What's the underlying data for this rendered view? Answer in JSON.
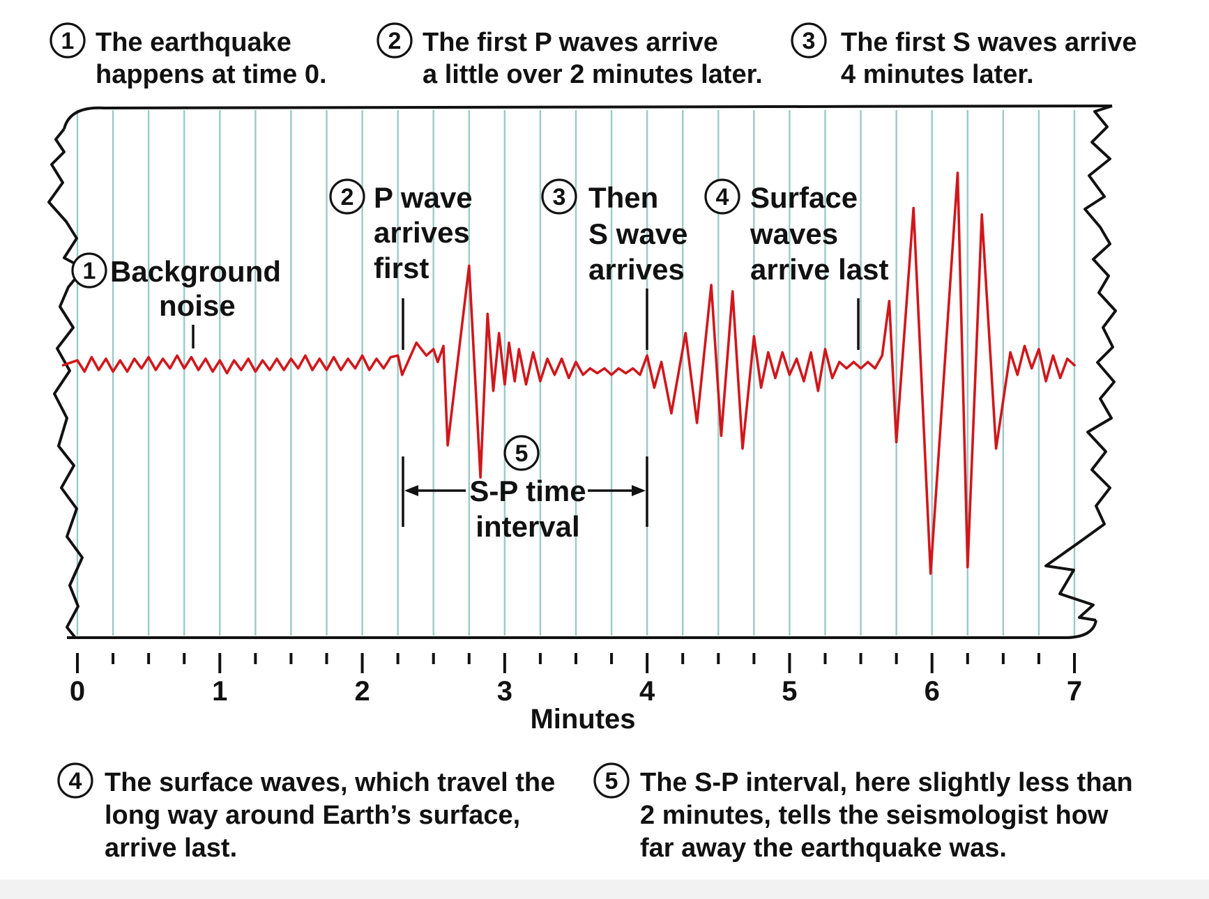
{
  "colors": {
    "trace": "#d0171c",
    "grid": "#9cc9c6",
    "ink": "#111111",
    "paper": "#ffffff"
  },
  "captions_top": [
    {
      "num": "1",
      "line1": "The earthquake",
      "line2": "happens at time 0."
    },
    {
      "num": "2",
      "line1": "The first P waves arrive",
      "line2": "a little over 2 minutes later."
    },
    {
      "num": "3",
      "line1": "The first S waves arrive",
      "line2": "4 minutes later."
    }
  ],
  "labels": {
    "background": {
      "num": "1",
      "line1": "Background",
      "line2": "noise"
    },
    "p_wave": {
      "num": "2",
      "line1": "P wave",
      "line2": "arrives",
      "line3": "first"
    },
    "s_wave": {
      "num": "3",
      "line1": "Then",
      "line2": "S wave",
      "line3": "arrives"
    },
    "surface": {
      "num": "4",
      "line1": "Surface",
      "line2": "waves",
      "line3": "arrive last"
    },
    "sp_interval": {
      "num": "5",
      "line1": "S-P time",
      "line2": "interval"
    }
  },
  "captions_bottom": [
    {
      "num": "4",
      "line1": "The surface waves, which travel the",
      "line2": "long way around Earth’s surface,",
      "line3": "arrive last."
    },
    {
      "num": "5",
      "line1": "The S-P interval, here slightly less than",
      "line2": "2 minutes, tells the seismologist how",
      "line3": "far away the earthquake was."
    }
  ],
  "axis": {
    "label": "Minutes",
    "min": 0,
    "max": 7,
    "ticks": [
      "0",
      "1",
      "2",
      "3",
      "4",
      "5",
      "6",
      "7"
    ]
  },
  "events": {
    "p_arrival_min": 2.28,
    "s_arrival_min": 4.0,
    "surface_arrival_min": 5.48
  },
  "seismogram": [
    [
      -0.1,
      0
    ],
    [
      0.0,
      0.15
    ],
    [
      0.05,
      -0.2
    ],
    [
      0.1,
      0.25
    ],
    [
      0.15,
      -0.15
    ],
    [
      0.2,
      0.2
    ],
    [
      0.25,
      -0.2
    ],
    [
      0.3,
      0.15
    ],
    [
      0.35,
      -0.2
    ],
    [
      0.4,
      0.2
    ],
    [
      0.45,
      -0.1
    ],
    [
      0.5,
      0.25
    ],
    [
      0.55,
      -0.15
    ],
    [
      0.6,
      0.2
    ],
    [
      0.65,
      -0.1
    ],
    [
      0.7,
      0.3
    ],
    [
      0.75,
      -0.1
    ],
    [
      0.8,
      0.25
    ],
    [
      0.85,
      -0.15
    ],
    [
      0.9,
      0.2
    ],
    [
      0.95,
      -0.2
    ],
    [
      1.0,
      0.15
    ],
    [
      1.05,
      -0.25
    ],
    [
      1.1,
      0.15
    ],
    [
      1.15,
      -0.15
    ],
    [
      1.2,
      0.2
    ],
    [
      1.25,
      -0.2
    ],
    [
      1.3,
      0.15
    ],
    [
      1.35,
      -0.15
    ],
    [
      1.4,
      0.2
    ],
    [
      1.45,
      -0.15
    ],
    [
      1.5,
      0.2
    ],
    [
      1.55,
      -0.1
    ],
    [
      1.6,
      0.3
    ],
    [
      1.65,
      -0.15
    ],
    [
      1.7,
      0.2
    ],
    [
      1.75,
      -0.15
    ],
    [
      1.8,
      0.25
    ],
    [
      1.85,
      -0.15
    ],
    [
      1.9,
      0.2
    ],
    [
      1.95,
      -0.1
    ],
    [
      2.0,
      0.3
    ],
    [
      2.05,
      -0.15
    ],
    [
      2.1,
      0.2
    ],
    [
      2.15,
      -0.1
    ],
    [
      2.2,
      0.25
    ],
    [
      2.25,
      0.3
    ],
    [
      2.28,
      -0.3
    ],
    [
      2.38,
      0.7
    ],
    [
      2.45,
      0.3
    ],
    [
      2.5,
      0.5
    ],
    [
      2.53,
      0.1
    ],
    [
      2.57,
      0.6
    ],
    [
      2.6,
      -2.5
    ],
    [
      2.75,
      3.1
    ],
    [
      2.83,
      -3.5
    ],
    [
      2.88,
      1.6
    ],
    [
      2.92,
      -0.8
    ],
    [
      2.96,
      1.0
    ],
    [
      3.0,
      -0.6
    ],
    [
      3.03,
      0.7
    ],
    [
      3.07,
      -0.5
    ],
    [
      3.1,
      0.5
    ],
    [
      3.15,
      -0.6
    ],
    [
      3.2,
      0.4
    ],
    [
      3.25,
      -0.5
    ],
    [
      3.3,
      0.2
    ],
    [
      3.35,
      -0.3
    ],
    [
      3.4,
      0.2
    ],
    [
      3.45,
      -0.4
    ],
    [
      3.5,
      0.1
    ],
    [
      3.55,
      -0.3
    ],
    [
      3.6,
      -0.1
    ],
    [
      3.65,
      -0.25
    ],
    [
      3.7,
      -0.1
    ],
    [
      3.75,
      -0.3
    ],
    [
      3.8,
      -0.1
    ],
    [
      3.85,
      -0.25
    ],
    [
      3.9,
      -0.1
    ],
    [
      3.95,
      -0.3
    ],
    [
      4.0,
      0.3
    ],
    [
      4.05,
      -0.7
    ],
    [
      4.1,
      0.1
    ],
    [
      4.17,
      -1.5
    ],
    [
      4.27,
      1.0
    ],
    [
      4.35,
      -1.8
    ],
    [
      4.45,
      2.5
    ],
    [
      4.52,
      -2.2
    ],
    [
      4.6,
      2.3
    ],
    [
      4.67,
      -2.6
    ],
    [
      4.75,
      0.9
    ],
    [
      4.8,
      -0.7
    ],
    [
      4.85,
      0.4
    ],
    [
      4.9,
      -0.4
    ],
    [
      4.95,
      0.4
    ],
    [
      5.0,
      -0.3
    ],
    [
      5.05,
      0.2
    ],
    [
      5.1,
      -0.5
    ],
    [
      5.15,
      0.4
    ],
    [
      5.2,
      -0.8
    ],
    [
      5.25,
      0.5
    ],
    [
      5.3,
      -0.4
    ],
    [
      5.35,
      0.1
    ],
    [
      5.4,
      -0.1
    ],
    [
      5.45,
      0.1
    ],
    [
      5.5,
      -0.1
    ],
    [
      5.55,
      0.1
    ],
    [
      5.6,
      -0.1
    ],
    [
      5.65,
      0.3
    ],
    [
      5.7,
      2.0
    ],
    [
      5.75,
      -2.4
    ],
    [
      5.87,
      4.9
    ],
    [
      5.99,
      -6.5
    ],
    [
      6.18,
      6.0
    ],
    [
      6.25,
      -6.3
    ],
    [
      6.35,
      4.7
    ],
    [
      6.45,
      -2.6
    ],
    [
      6.55,
      0.4
    ],
    [
      6.6,
      -0.3
    ],
    [
      6.65,
      0.6
    ],
    [
      6.7,
      -0.1
    ],
    [
      6.75,
      0.5
    ],
    [
      6.8,
      -0.5
    ],
    [
      6.85,
      0.3
    ],
    [
      6.9,
      -0.4
    ],
    [
      6.95,
      0.2
    ],
    [
      7.0,
      0
    ]
  ]
}
